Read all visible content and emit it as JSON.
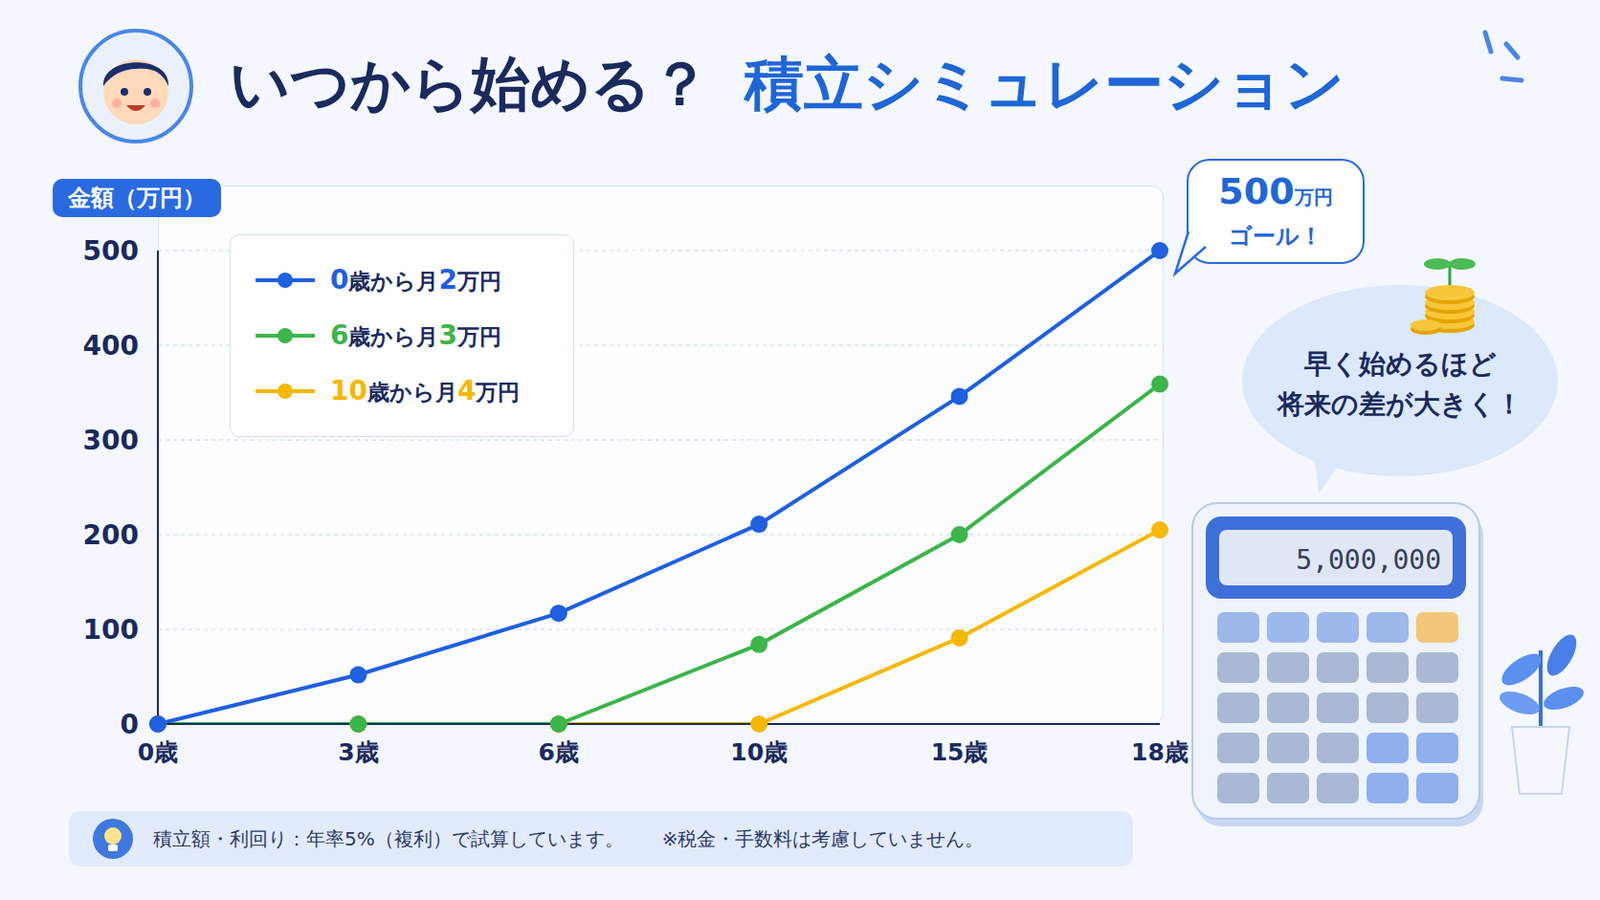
{
  "chart_data": {
    "type": "line",
    "title": "いつから始める？ 積立シミュレーション",
    "y_label": "金額（万円）",
    "categories": [
      "0歳",
      "3歳",
      "6歳",
      "10歳",
      "15歳",
      "18歳"
    ],
    "series": [
      {
        "name": "0歳から月2万円",
        "color": "#1f5fe0",
        "values": [
          0,
          52,
          117,
          211,
          346,
          500
        ]
      },
      {
        "name": "6歳から月3万円",
        "color": "#3cb54a",
        "values": [
          0,
          0,
          0,
          84,
          200,
          359
        ]
      },
      {
        "name": "10歳から月4万円",
        "color": "#f5b800",
        "values": [
          0,
          0,
          0,
          0,
          91,
          205
        ]
      }
    ],
    "ylim": [
      0,
      500
    ],
    "yticks": [
      0,
      100,
      200,
      300,
      400,
      500
    ],
    "grid": true,
    "legend": "top-left",
    "marker": "circle",
    "annotations": {
      "goal": [
        "500万円",
        "ゴール！"
      ],
      "message": [
        "早く始めるほど",
        "将来の差が大きく！"
      ],
      "calculator_display": "5,000,000"
    },
    "footnote": [
      "積立額・利回り：年率5%（複利）で試算しています。",
      "※税金・手数料は考慮していません。"
    ]
  }
}
